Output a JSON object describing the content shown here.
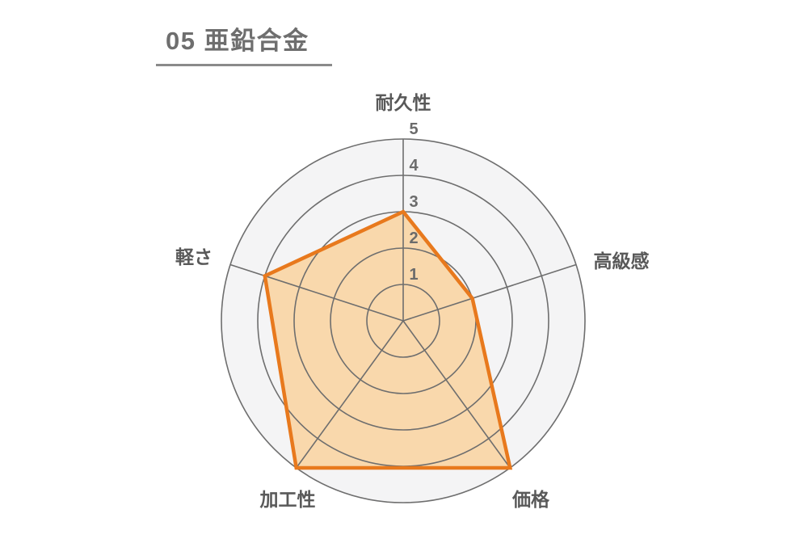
{
  "page": {
    "background": "#ffffff"
  },
  "title": {
    "full": "05 亜鉛合金",
    "number": "05",
    "name": "亜鉛合金"
  },
  "chart_data": {
    "type": "radar",
    "title": "05 亜鉛合金",
    "categories": [
      "耐久性",
      "高級感",
      "価格",
      "加工性",
      "軽さ"
    ],
    "values": [
      3,
      2,
      5,
      5,
      4
    ],
    "series": [
      {
        "name": "亜鉛合金",
        "values": [
          3,
          2,
          5,
          5,
          4
        ]
      }
    ],
    "scale": {
      "min": 0,
      "max": 5,
      "step": 1,
      "tick_labels": [
        "1",
        "2",
        "3",
        "4",
        "5"
      ]
    },
    "layout": {
      "grid": "circular",
      "rings": 5,
      "axes": 5,
      "start_axis": "top",
      "direction": "clockwise",
      "legend": "none"
    },
    "colors": {
      "accent": "#E8791D",
      "fill": "#F9D8AC",
      "grid": "#6E6E6E",
      "disc": "#F4F4F5",
      "axis_label": "#595959",
      "tick_label": "#6B6B6B",
      "title": "#6E6E6E",
      "underline": "#8A8A8A"
    }
  }
}
